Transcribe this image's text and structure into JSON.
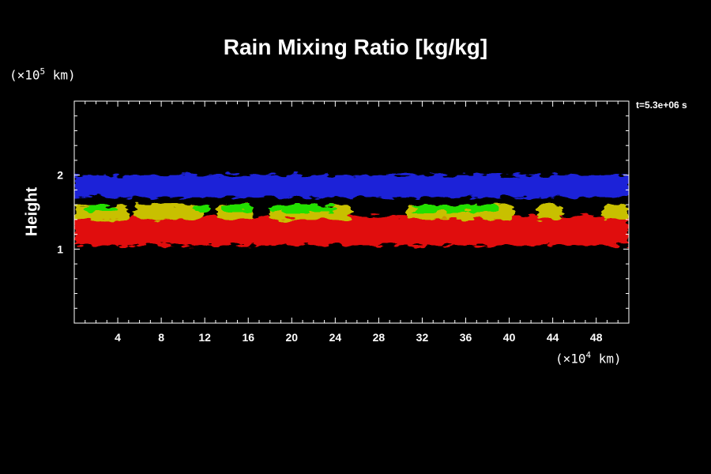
{
  "chart_data": {
    "type": "heatmap",
    "title": "Rain Mixing Ratio [kg/kg]",
    "ylabel": "Height",
    "y_unit": {
      "prefix": "(×10",
      "exp": "5",
      "suffix": " km)"
    },
    "x_unit": {
      "prefix": "(×10",
      "exp": "4",
      "suffix": " km)"
    },
    "time_label": "t=5.3e+06 s",
    "xlim": [
      0,
      51
    ],
    "ylim": [
      0,
      3
    ],
    "xticks": [
      "4",
      "8",
      "12",
      "16",
      "20",
      "24",
      "28",
      "32",
      "36",
      "40",
      "44",
      "48"
    ],
    "yticks": [
      "1",
      "2"
    ],
    "colors": {
      "blue": "#1a24d8",
      "yellow": "#c8c000",
      "green": "#22e000",
      "red": "#e01010",
      "background": "#000000",
      "axis": "#ffffff"
    },
    "layers": [
      {
        "color": "blue",
        "y_bottom": 1.7,
        "y_top": 2.0
      },
      {
        "color": "yellow",
        "y_bottom": 1.4,
        "y_top": 1.6,
        "patches_x": [
          [
            0,
            5
          ],
          [
            5.5,
            12
          ],
          [
            13,
            16.5
          ],
          [
            18,
            25.5
          ],
          [
            30.5,
            40.5
          ],
          [
            42.5,
            45
          ],
          [
            48.5,
            51
          ]
        ]
      },
      {
        "color": "green",
        "y_bottom": 1.5,
        "y_top": 1.6,
        "patches_x": [
          [
            1,
            4
          ],
          [
            11,
            12.5
          ],
          [
            13.5,
            16.5
          ],
          [
            18,
            24
          ],
          [
            31,
            39
          ]
        ]
      },
      {
        "color": "red",
        "y_bottom": 1.05,
        "y_top": 1.45
      }
    ]
  }
}
